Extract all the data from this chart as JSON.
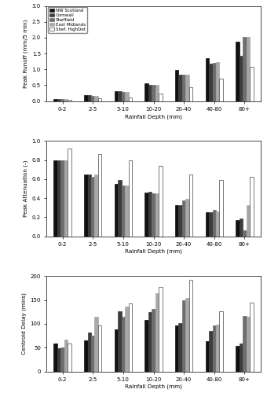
{
  "categories": [
    "0-2",
    "2-5",
    "5-10",
    "10-20",
    "20-40",
    "40-80",
    "80+"
  ],
  "series_labels": [
    "NW Scotland",
    "Cornwall",
    "Sheffield",
    "East Midlands",
    "Shef. HighDet"
  ],
  "peak_runoff": [
    [
      0.07,
      0.18,
      0.32,
      0.57,
      0.97,
      1.35,
      1.87
    ],
    [
      0.07,
      0.19,
      0.3,
      0.5,
      0.82,
      1.18,
      1.42
    ],
    [
      0.06,
      0.17,
      0.29,
      0.5,
      0.83,
      1.2,
      2.02
    ],
    [
      0.06,
      0.16,
      0.29,
      0.52,
      0.83,
      1.22,
      2.03
    ],
    [
      0.03,
      0.08,
      0.12,
      0.25,
      0.44,
      0.7,
      1.08
    ]
  ],
  "peak_attenuation": [
    [
      0.8,
      0.65,
      0.55,
      0.46,
      0.33,
      0.25,
      0.17
    ],
    [
      0.8,
      0.65,
      0.59,
      0.47,
      0.33,
      0.25,
      0.19
    ],
    [
      0.8,
      0.62,
      0.53,
      0.45,
      0.38,
      0.28,
      0.06
    ],
    [
      0.8,
      0.65,
      0.53,
      0.45,
      0.39,
      0.26,
      0.33
    ],
    [
      0.92,
      0.86,
      0.8,
      0.74,
      0.65,
      0.59,
      0.62
    ]
  ],
  "centroid_delay": [
    [
      58,
      65,
      88,
      108,
      97,
      63,
      53
    ],
    [
      48,
      82,
      126,
      124,
      101,
      85,
      58
    ],
    [
      50,
      75,
      115,
      132,
      150,
      97,
      117
    ],
    [
      67,
      114,
      137,
      165,
      155,
      99,
      115
    ],
    [
      58,
      97,
      143,
      178,
      193,
      126,
      144
    ]
  ],
  "colors": [
    "#111111",
    "#3d3d3d",
    "#6e6e6e",
    "#a8a8a8",
    "#ffffff"
  ],
  "edge_colors": [
    "#111111",
    "#3d3d3d",
    "#6e6e6e",
    "#a8a8a8",
    "#444444"
  ],
  "ylabel1": "Peak Runoff (mm/5 min)",
  "ylabel2": "Peak Attenuation (-)",
  "ylabel3": "Centroid Delay (mins)",
  "xlabel": "Rainfall Depth (mm)",
  "ylim1": [
    0.0,
    3.0
  ],
  "ylim2": [
    0.0,
    1.0
  ],
  "ylim3": [
    0,
    200
  ],
  "yticks1": [
    0.0,
    0.5,
    1.0,
    1.5,
    2.0,
    2.5,
    3.0
  ],
  "yticks2": [
    0.0,
    0.2,
    0.4,
    0.6,
    0.8,
    1.0
  ],
  "yticks3": [
    0,
    50,
    100,
    150,
    200
  ]
}
